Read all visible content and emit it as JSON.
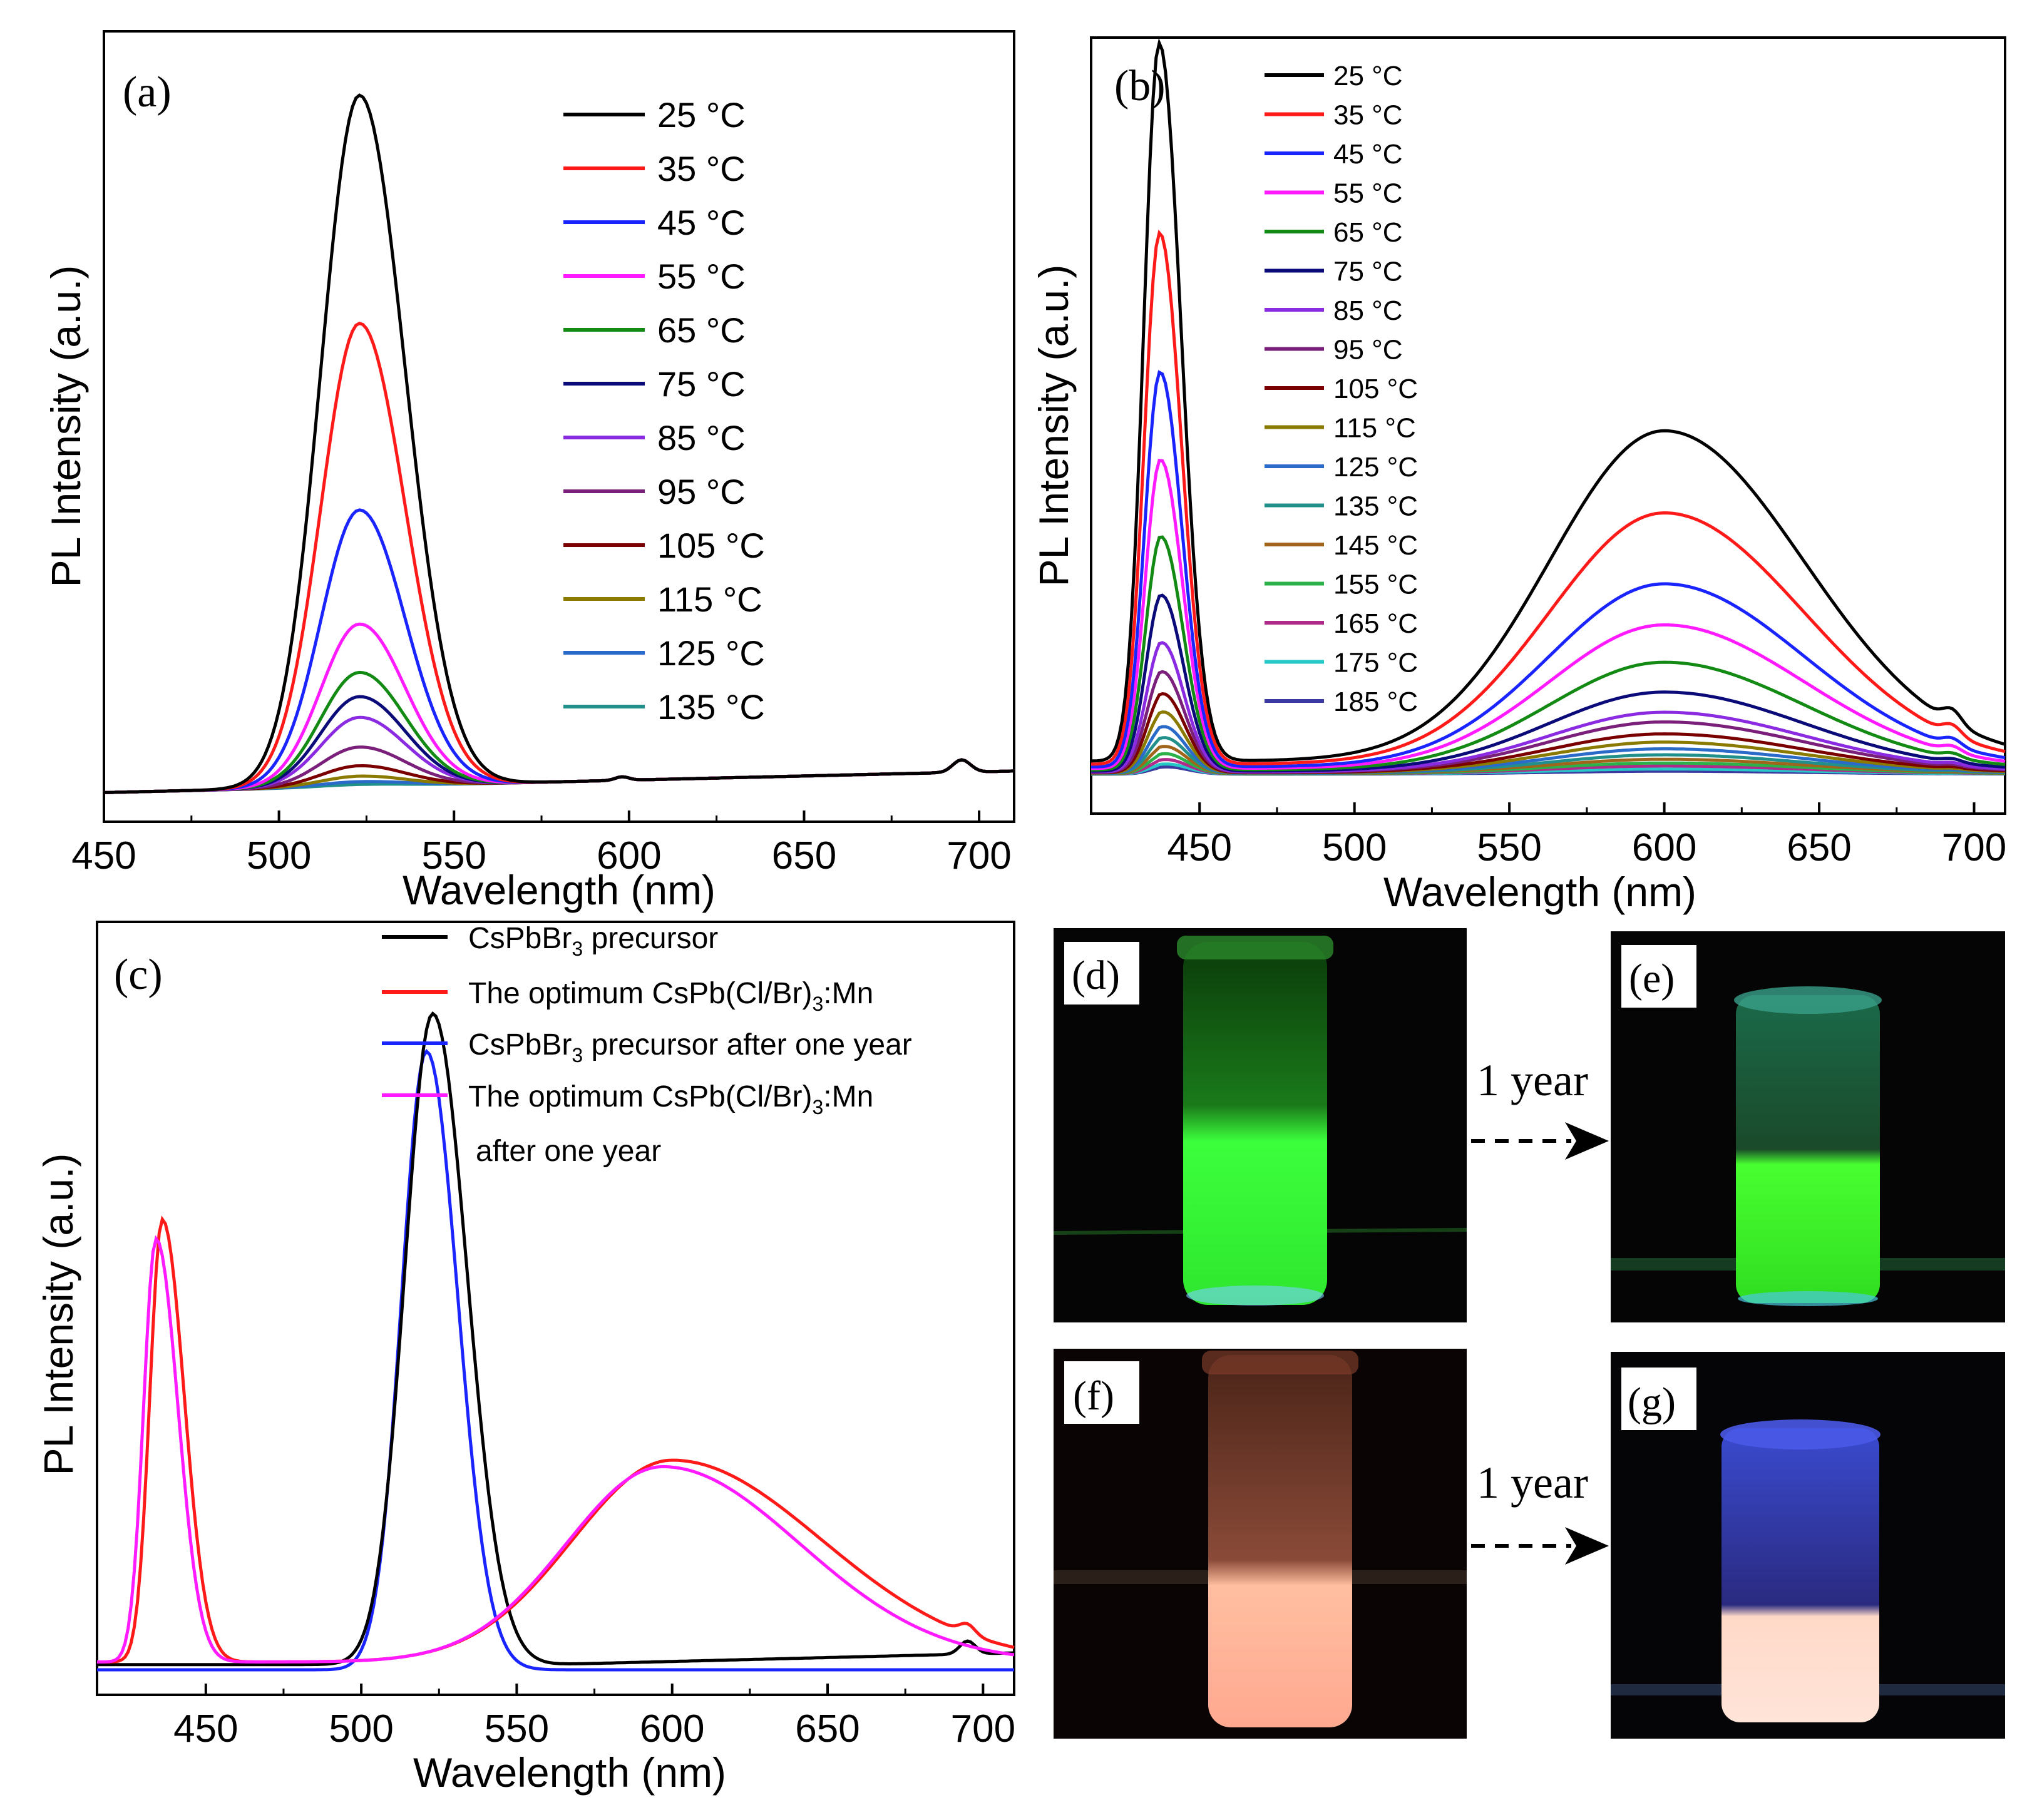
{
  "figure": {
    "background": "#ffffff",
    "temperature_colors": [
      "#000000",
      "#ff1a1a",
      "#1a24ff",
      "#ff1aff",
      "#138a13",
      "#0a0a78",
      "#8a2be2",
      "#7a1f7a",
      "#7a0000",
      "#8a7a00",
      "#2a6ac8",
      "#22908a",
      "#a0651a",
      "#2bb04a",
      "#b02a8a",
      "#28c8c8",
      "#3a3aa0"
    ],
    "icons": {
      "arrow": "dashed-arrow-right-icon"
    }
  },
  "chart_data": [
    {
      "panel": "(a)",
      "type": "line",
      "title": "",
      "xlabel": "Wavelength (nm)",
      "ylabel": "PL Intensity (a.u.)",
      "xlim": [
        450,
        710
      ],
      "ylim": [
        0,
        1.08
      ],
      "xticks": [
        "450",
        "500",
        "550",
        "600",
        "650",
        "700"
      ],
      "xtick_values": [
        450,
        500,
        550,
        600,
        650,
        700
      ],
      "grid": false,
      "legend": "top-right",
      "series": [
        {
          "name": "25 °C",
          "label": "25",
          "peak": 1.0
        },
        {
          "name": "35 °C",
          "label": "35",
          "peak": 0.67
        },
        {
          "name": "45 °C",
          "label": "45",
          "peak": 0.4
        },
        {
          "name": "55 °C",
          "label": "55",
          "peak": 0.235
        },
        {
          "name": "65 °C",
          "label": "65",
          "peak": 0.165
        },
        {
          "name": "75 °C",
          "label": "75",
          "peak": 0.13
        },
        {
          "name": "85 °C",
          "label": "85",
          "peak": 0.1
        },
        {
          "name": "95 °C",
          "label": "95",
          "peak": 0.057
        },
        {
          "name": "105 °C",
          "label": "105",
          "peak": 0.03
        },
        {
          "name": "115 °C",
          "label": "115",
          "peak": 0.015
        },
        {
          "name": "125 °C",
          "label": "125",
          "peak": 0.007
        },
        {
          "name": "135 °C",
          "label": "135",
          "peak": 0.003
        }
      ],
      "green_peak_nm": 523
    },
    {
      "panel": "(b)",
      "type": "line",
      "title": "",
      "xlabel": "Wavelength (nm)",
      "ylabel": "PL Intensity (a.u.)",
      "xlim": [
        415,
        710
      ],
      "ylim": [
        0,
        1.02
      ],
      "xticks": [
        "450",
        "500",
        "550",
        "600",
        "650",
        "700"
      ],
      "xtick_values": [
        450,
        500,
        550,
        600,
        650,
        700
      ],
      "grid": false,
      "legend": "top-left",
      "series": [
        {
          "name": "25 °C",
          "label": "25",
          "peak437": 1.0,
          "peak600": 0.46
        },
        {
          "name": "35 °C",
          "label": "35",
          "peak437": 0.74,
          "peak600": 0.35
        },
        {
          "name": "45 °C",
          "label": "45",
          "peak437": 0.55,
          "peak600": 0.255
        },
        {
          "name": "55 °C",
          "label": "55",
          "peak437": 0.43,
          "peak600": 0.2
        },
        {
          "name": "65 °C",
          "label": "65",
          "peak437": 0.325,
          "peak600": 0.15
        },
        {
          "name": "75 °C",
          "label": "75",
          "peak437": 0.245,
          "peak600": 0.11
        },
        {
          "name": "85 °C",
          "label": "85",
          "peak437": 0.18,
          "peak600": 0.083
        },
        {
          "name": "95 °C",
          "label": "95",
          "peak437": 0.14,
          "peak600": 0.07
        },
        {
          "name": "105 °C",
          "label": "105",
          "peak437": 0.11,
          "peak600": 0.054
        },
        {
          "name": "115 °C",
          "label": "115",
          "peak437": 0.085,
          "peak600": 0.043
        },
        {
          "name": "125 °C",
          "label": "125",
          "peak437": 0.065,
          "peak600": 0.034
        },
        {
          "name": "135 °C",
          "label": "135",
          "peak437": 0.05,
          "peak600": 0.026
        },
        {
          "name": "145 °C",
          "label": "145",
          "peak437": 0.038,
          "peak600": 0.02
        },
        {
          "name": "155 °C",
          "label": "155",
          "peak437": 0.028,
          "peak600": 0.015
        },
        {
          "name": "165 °C",
          "label": "165",
          "peak437": 0.02,
          "peak600": 0.011
        },
        {
          "name": "175 °C",
          "label": "175",
          "peak437": 0.014,
          "peak600": 0.007
        },
        {
          "name": "185 °C",
          "label": "185",
          "peak437": 0.01,
          "peak600": 0.004
        }
      ],
      "blue_peak_nm": 437,
      "orange_peak_nm": 600
    },
    {
      "panel": "(c)",
      "type": "line",
      "title": "",
      "xlabel": "Wavelength (nm)",
      "ylabel": "PL Intensity (a.u.)",
      "xlim": [
        415,
        710
      ],
      "ylim": [
        0,
        1.12
      ],
      "xticks": [
        "450",
        "500",
        "550",
        "600",
        "650",
        "700"
      ],
      "xtick_values": [
        450,
        500,
        550,
        600,
        650,
        700
      ],
      "grid": false,
      "legend": "top-right",
      "series": [
        {
          "name": "CsPbBr3 precursor",
          "peak_nm": 523,
          "peak": 1.0,
          "color": "#000000"
        },
        {
          "name": "The optimum CsPb(Cl/Br)3:Mn",
          "peak437": 0.68,
          "peak600": 0.31,
          "color": "#ff1a1a"
        },
        {
          "name": "CsPbBr3 precursor after one year",
          "peak_nm": 521,
          "peak": 0.95,
          "color": "#1a24ff"
        },
        {
          "name": "The optimum CsPb(Cl/Br)3:Mn after one year",
          "peak437": 0.65,
          "peak600": 0.3,
          "color": "#ff1aff"
        }
      ]
    }
  ],
  "legend_c": {
    "l1a": "CsPbBr",
    "l1sub": "3",
    "l1b": " precursor",
    "l2a": "The optimum CsPb(Cl/Br)",
    "l2sub": "3",
    "l2b": ":Mn",
    "l3a": "CsPbBr",
    "l3sub": "3",
    "l3b": " precursor after one year",
    "l4a": "The optimum CsPb(Cl/Br)",
    "l4sub": "3",
    "l4b": ":Mn",
    "l4c": "after one year"
  },
  "units": {
    "degree_c": "°C"
  },
  "panel_labels": {
    "a": "(a)",
    "b": "(b)",
    "c": "(c)",
    "d": "(d)",
    "e": "(e)",
    "f": "(f)",
    "g": "(g)"
  },
  "photos": {
    "arrow_label_top": "1 year",
    "arrow_label_bottom": "1 year",
    "d_glow": "#3cff3c",
    "e_glow": "#48ff30",
    "f_glow": "#ffbfa0",
    "g_glow": "#ffd9c8",
    "g_vial_tint": "#3a4bd0"
  }
}
